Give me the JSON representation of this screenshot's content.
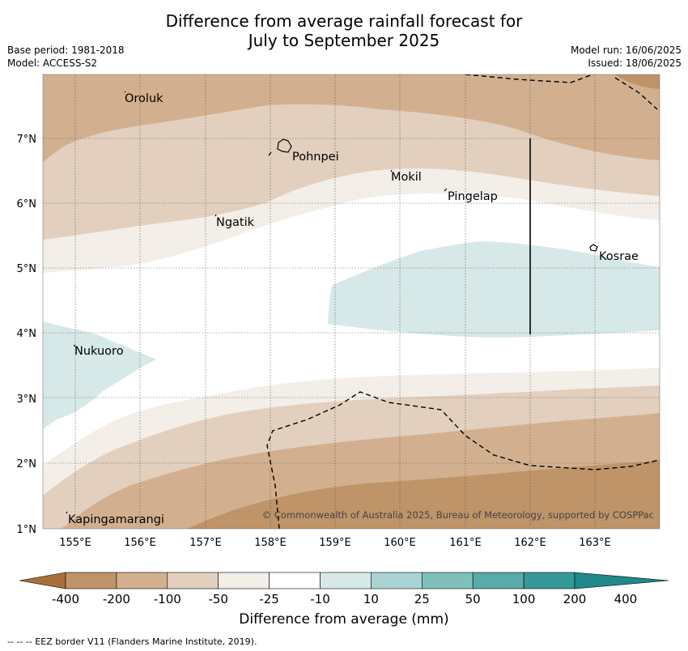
{
  "title_line1": "Difference from average rainfall forecast for",
  "title_line2": "July to September 2025",
  "base_period": "Base period: 1981-2018",
  "model": "Model: ACCESS-S2",
  "model_run": "Model run: 16/06/2025",
  "issued": "Issued: 18/06/2025",
  "copyright": "© Commonwealth of Australia 2025, Bureau of Meteorology, supported by COSPPac",
  "x_ticks": [
    "155°E",
    "156°E",
    "157°E",
    "158°E",
    "159°E",
    "160°E",
    "161°E",
    "162°E",
    "163°E"
  ],
  "y_ticks": [
    "1°N",
    "2°N",
    "3°N",
    "4°N",
    "5°N",
    "6°N",
    "7°N"
  ],
  "places": [
    "Oroluk",
    "Pohnpei",
    "Mokil",
    "Pingelap",
    "Ngatik",
    "Kosrae",
    "Nukuoro",
    "Kapingamarangi"
  ],
  "colorbar": {
    "labels": [
      "-400",
      "-200",
      "-100",
      "-50",
      "-25",
      "-10",
      "10",
      "25",
      "50",
      "100",
      "200",
      "400"
    ],
    "colors": [
      "#a8703b",
      "#be9468",
      "#d2b08f",
      "#e3cfbe",
      "#f3eee8",
      "#ffffff",
      "#d6e9e8",
      "#a9d4d3",
      "#7fc0bd",
      "#57aba8",
      "#35999a",
      "#1f8a89"
    ],
    "title": "Difference from average (mm)"
  },
  "footnote": "--  --  -- EEZ border V11 (Flanders Marine Institute, 2019)."
}
